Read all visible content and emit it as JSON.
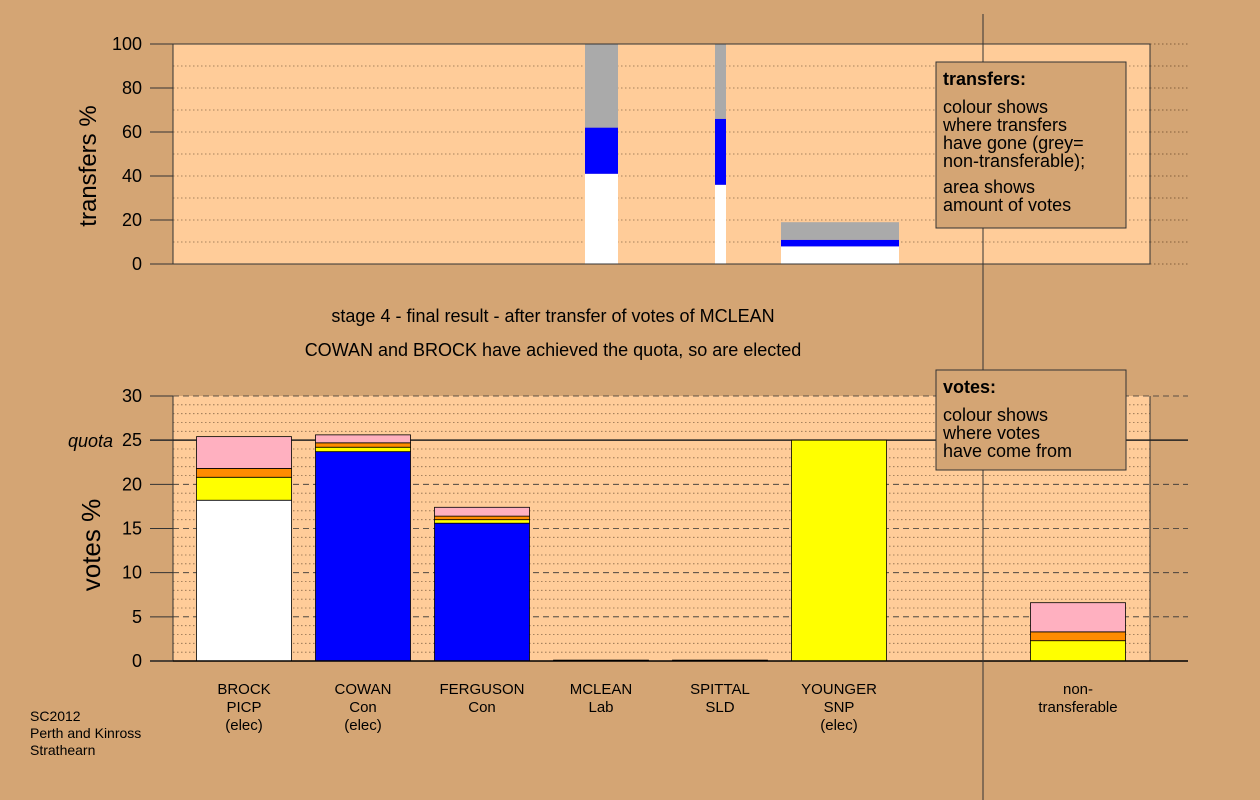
{
  "chart_data": [
    {
      "type": "bar",
      "ylabel": "transfers %",
      "ylim": [
        0,
        100
      ],
      "yticks": [
        "0",
        "20",
        "40",
        "60",
        "80",
        "100"
      ],
      "grid": true,
      "bars": [
        {
          "segments": [
            {
              "color": "#FFFFFF",
              "from": 0,
              "to": 41
            },
            {
              "color": "#0000FF",
              "from": 41,
              "to": 62
            },
            {
              "color": "#AAAAAA",
              "from": 62,
              "to": 100
            }
          ]
        },
        {
          "segments": [
            {
              "color": "#FFFFFF",
              "from": 0,
              "to": 36
            },
            {
              "color": "#0000FF",
              "from": 36,
              "to": 66
            },
            {
              "color": "#AAAAAA",
              "from": 66,
              "to": 100
            }
          ]
        },
        {
          "segments": [
            {
              "color": "#FFFFFF",
              "from": 0,
              "to": 8
            },
            {
              "color": "#0000FF",
              "from": 8,
              "to": 11
            },
            {
              "color": "#AAAAAA",
              "from": 11,
              "to": 19
            }
          ]
        }
      ],
      "legend": {
        "title": "transfers:",
        "lines1": [
          "colour shows",
          "where transfers",
          "have gone (grey=",
          "non-transferable);"
        ],
        "lines2": [
          "area shows",
          "amount of votes"
        ]
      }
    },
    {
      "type": "bar",
      "ylabel": "votes %",
      "ylim": [
        0,
        30
      ],
      "yticks": [
        "0",
        "5",
        "10",
        "15",
        "20",
        "25",
        "30"
      ],
      "quota": 25,
      "quota_label": "quota",
      "grid": true,
      "categories": [
        {
          "lines": [
            "BROCK",
            "PICP",
            "(elec)"
          ]
        },
        {
          "lines": [
            "COWAN",
            "Con",
            "(elec)"
          ]
        },
        {
          "lines": [
            "FERGUSON",
            "Con"
          ]
        },
        {
          "lines": [
            "MCLEAN",
            "Lab"
          ]
        },
        {
          "lines": [
            "SPITTAL",
            "SLD"
          ]
        },
        {
          "lines": [
            "YOUNGER",
            "SNP",
            "(elec)"
          ]
        },
        {
          "lines": [
            "non-",
            "transferable"
          ]
        }
      ],
      "stacks": [
        [
          {
            "color": "#FFFFFF",
            "value": 18.2
          },
          {
            "color": "#FFFF00",
            "value": 2.6
          },
          {
            "color": "#FF8C00",
            "value": 1.0
          },
          {
            "color": "#FFB0C0",
            "value": 3.6
          }
        ],
        [
          {
            "color": "#0000FF",
            "value": 23.7
          },
          {
            "color": "#FFFF00",
            "value": 0.5
          },
          {
            "color": "#FF8C00",
            "value": 0.5
          },
          {
            "color": "#FFB0C0",
            "value": 0.9
          }
        ],
        [
          {
            "color": "#0000FF",
            "value": 15.6
          },
          {
            "color": "#FFFF00",
            "value": 0.4
          },
          {
            "color": "#FF8C00",
            "value": 0.4
          },
          {
            "color": "#FFB0C0",
            "value": 1.0
          }
        ],
        [
          {
            "color": "#0000FF",
            "value": 0.1
          }
        ],
        [
          {
            "color": "#0000FF",
            "value": 0.1
          }
        ],
        [
          {
            "color": "#FFFF00",
            "value": 25.0
          }
        ],
        [
          {
            "color": "#FFFF00",
            "value": 2.3
          },
          {
            "color": "#FF8C00",
            "value": 1.0
          },
          {
            "color": "#FFB0C0",
            "value": 3.3
          }
        ]
      ],
      "legend": {
        "title": "votes:",
        "lines1": [
          "colour shows",
          "where votes",
          "have come from"
        ]
      }
    }
  ],
  "captions": [
    "stage 4 - final result - after transfer of votes of MCLEAN",
    "COWAN and BROCK have achieved the quota, so are elected"
  ],
  "footer": [
    "SC2012",
    "Perth and Kinross",
    "Strathearn"
  ]
}
